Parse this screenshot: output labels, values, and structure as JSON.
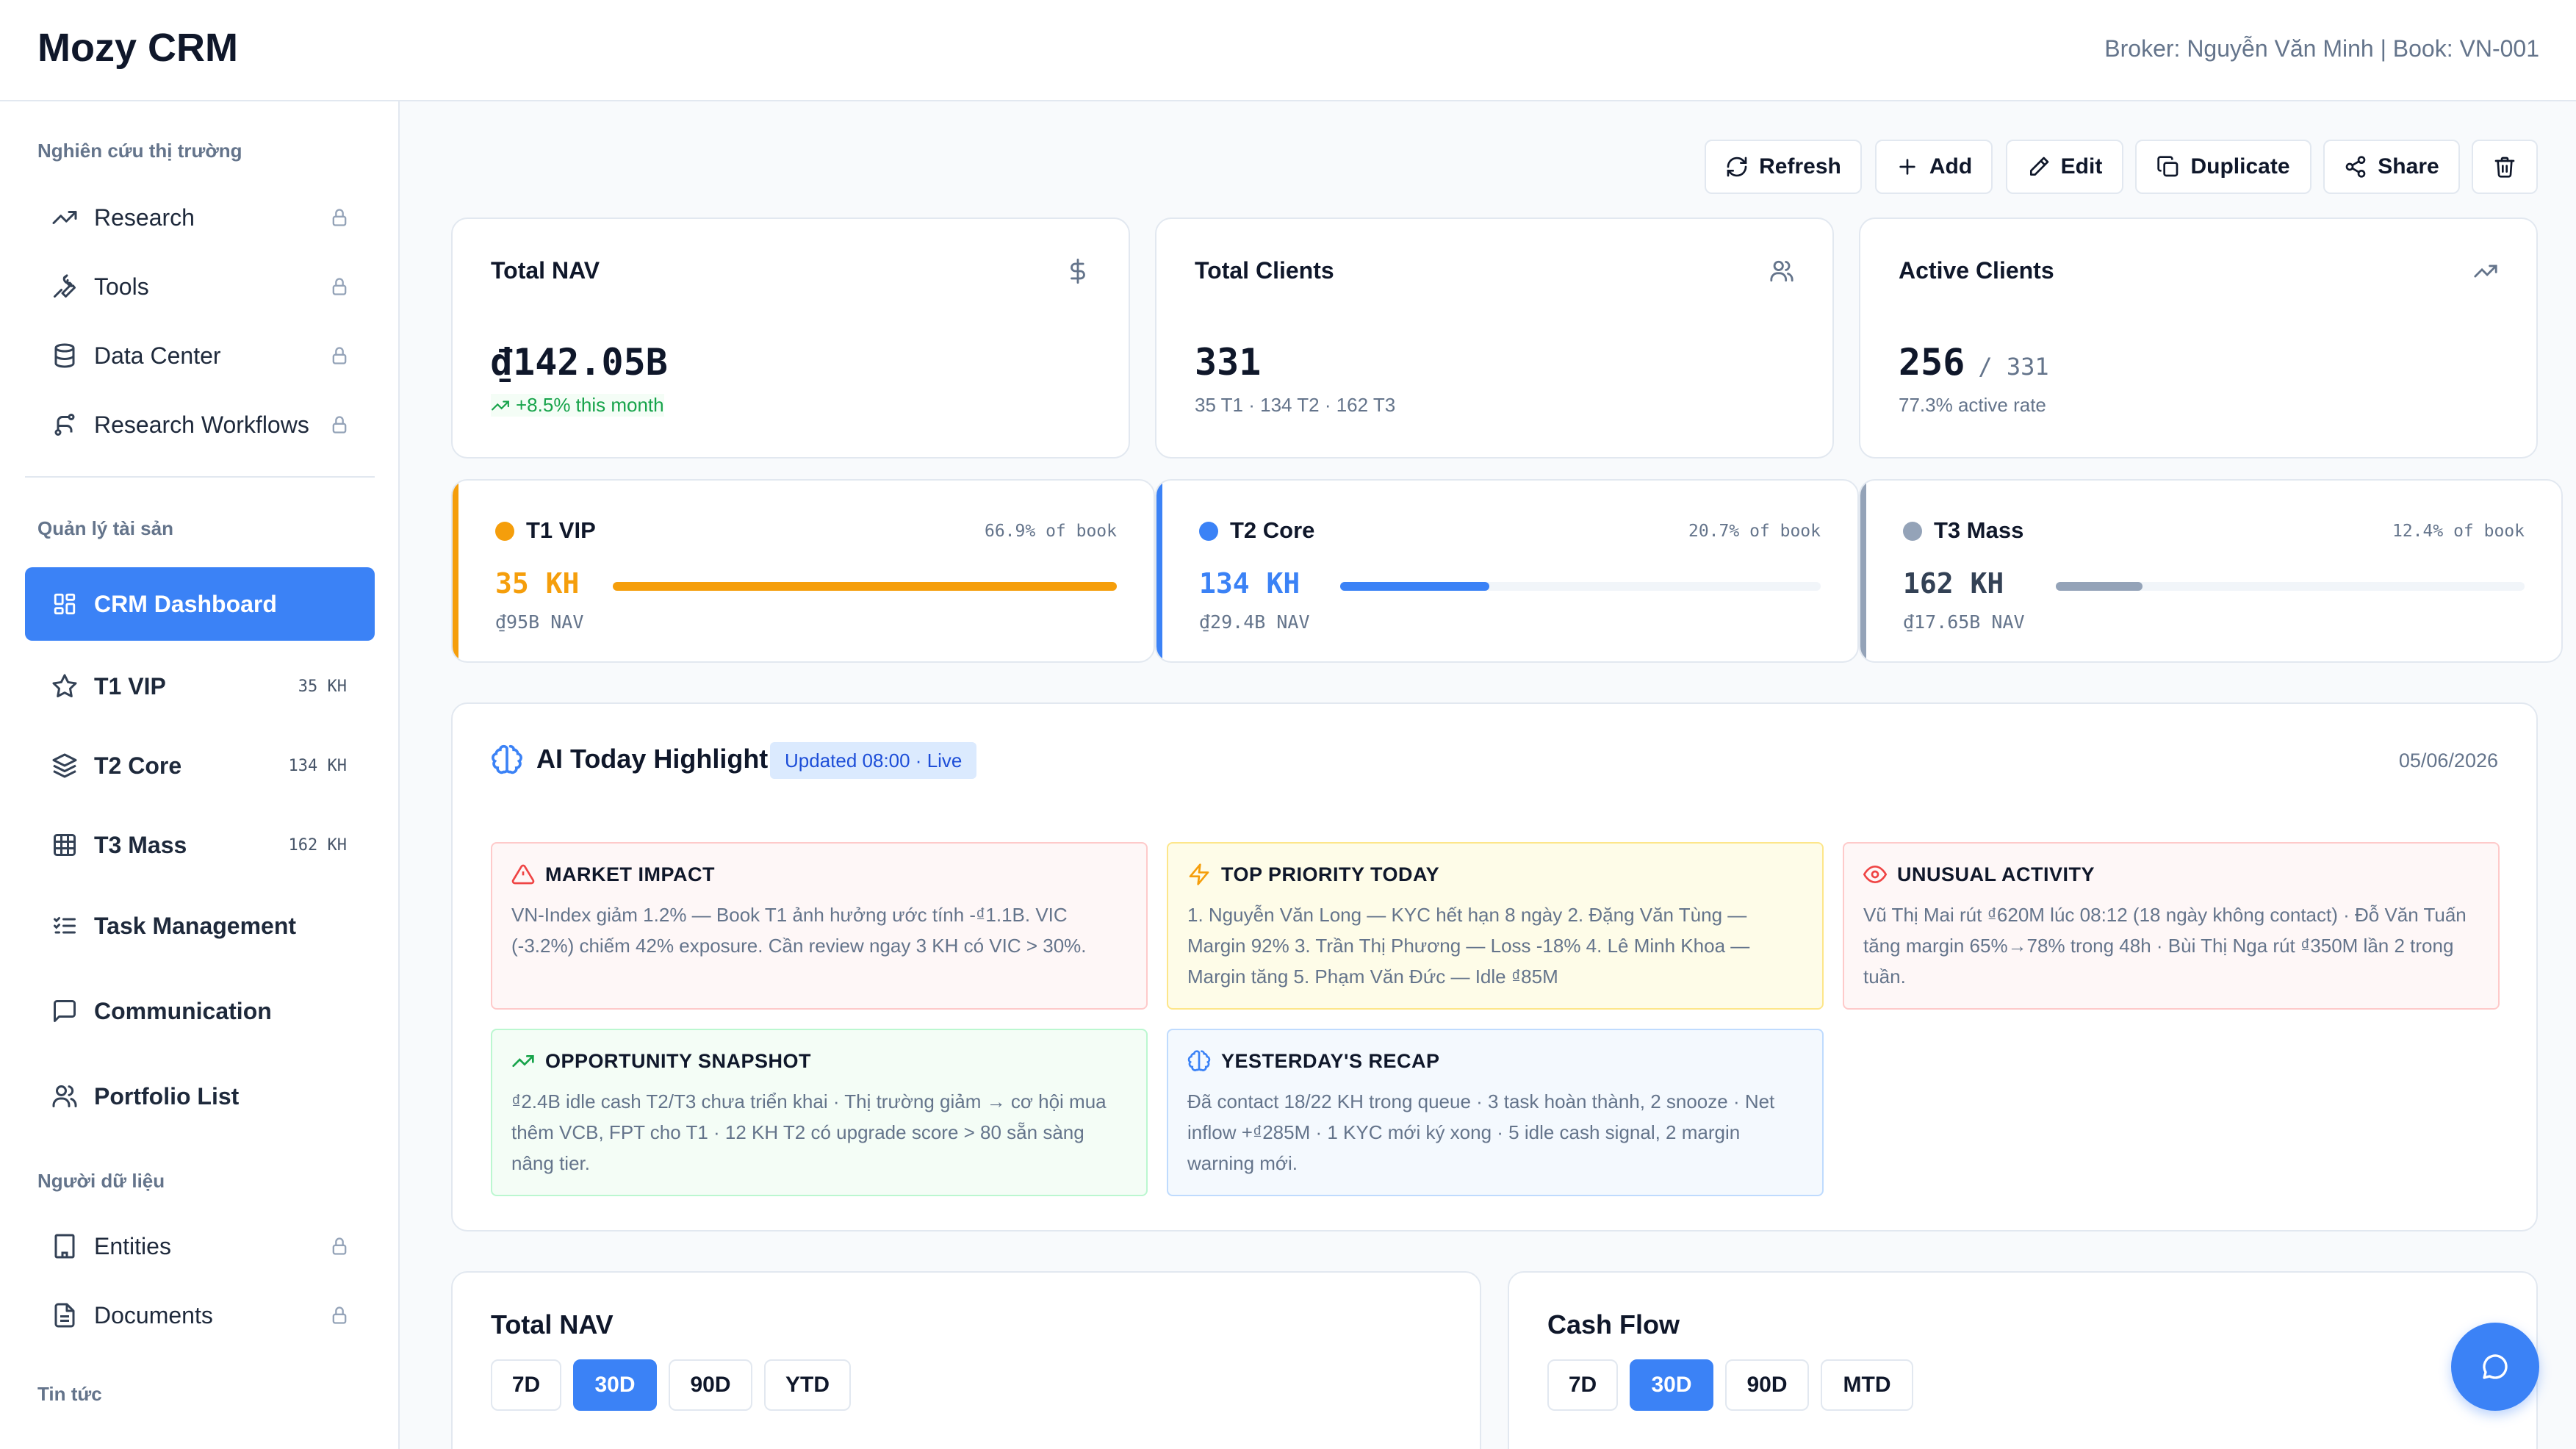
{
  "app": {
    "title": "Mozy CRM",
    "broker_info": "Broker: Nguyễn Văn Minh | Book: VN-001"
  },
  "sidebar": {
    "sections": [
      "Nghiên cứu thị trường",
      "Quản lý tài sản",
      "Người dữ liệu",
      "Tin tức"
    ],
    "research_items": [
      {
        "label": "Research",
        "icon": "trending-up-icon",
        "locked": true
      },
      {
        "label": "Tools",
        "icon": "wrench-icon",
        "locked": true
      },
      {
        "label": "Data Center",
        "icon": "database-icon",
        "locked": true
      },
      {
        "label": "Research Workflows",
        "icon": "workflow-icon",
        "locked": true
      }
    ],
    "asset_items": [
      {
        "label": "CRM Dashboard",
        "icon": "dashboard-grid-icon",
        "active": true
      },
      {
        "label": "T1 VIP",
        "icon": "star-icon",
        "count": "35 KH"
      },
      {
        "label": "T2 Core",
        "icon": "layers-icon",
        "count": "134 KH"
      },
      {
        "label": "T3 Mass",
        "icon": "grid-icon",
        "count": "162 KH"
      },
      {
        "label": "Task Management",
        "icon": "list-check-icon"
      },
      {
        "label": "Communication",
        "icon": "message-square-icon"
      },
      {
        "label": "Portfolio List",
        "icon": "users-icon"
      }
    ],
    "data_items": [
      {
        "label": "Entities",
        "icon": "building-icon",
        "locked": true
      },
      {
        "label": "Documents",
        "icon": "document-icon",
        "locked": true
      }
    ]
  },
  "toolbar": {
    "refresh": "Refresh",
    "add": "Add",
    "edit": "Edit",
    "duplicate": "Duplicate",
    "share": "Share"
  },
  "stats": {
    "total_nav": {
      "title": "Total NAV",
      "value": "₫142.05B",
      "change": "+8.5% this month"
    },
    "total_clients": {
      "title": "Total Clients",
      "value": "331",
      "sub": "35 T1 · 134 T2 · 162 T3"
    },
    "active_clients": {
      "title": "Active Clients",
      "value": "256",
      "total": "/ 331",
      "sub": "77.3% active rate"
    }
  },
  "tiers": [
    {
      "name": "T1 VIP",
      "pct": "66.9% of book",
      "count": "35 KH",
      "nav": "₫95B NAV",
      "fill": 1.0,
      "color": "#f59e0b"
    },
    {
      "name": "T2 Core",
      "pct": "20.7% of book",
      "count": "134 KH",
      "nav": "₫29.4B NAV",
      "fill": 0.31,
      "color": "#3b82f6"
    },
    {
      "name": "T3 Mass",
      "pct": "12.4% of book",
      "count": "162 KH",
      "nav": "₫17.65B NAV",
      "fill": 0.185,
      "color": "#94a3b8"
    }
  ],
  "highlight": {
    "title": "AI Today Highlight",
    "badge": "Updated 08:00 · Live",
    "date": "05/06/2026",
    "cards": {
      "market": {
        "title": "MARKET IMPACT",
        "body": "VN-Index giảm 1.2% — Book T1 ảnh hưởng ước tính -₫1.1B. VIC (-3.2%) chiếm 42% exposure. Cần review ngay 3 KH có VIC > 30%."
      },
      "priority": {
        "title": "TOP PRIORITY TODAY",
        "body": "1. Nguyễn Văn Long — KYC hết hạn 8 ngày 2. Đặng Văn Tùng — Margin 92% 3. Trần Thị Phương — Loss -18% 4. Lê Minh Khoa — Margin tăng 5. Phạm Văn Đức — Idle ₫85M"
      },
      "unusual": {
        "title": "UNUSUAL ACTIVITY",
        "body": "Vũ Thị Mai rút ₫620M lúc 08:12 (18 ngày không contact) · Đỗ Văn Tuấn tăng margin 65%→78% trong 48h · Bùi Thị Nga rút ₫350M lần 2 trong tuần."
      },
      "opportunity": {
        "title": "OPPORTUNITY SNAPSHOT",
        "body": "₫2.4B idle cash T2/T3 chưa triển khai · Thị trường giảm → cơ hội mua thêm VCB, FPT cho T1 · 12 KH T2 có upgrade score > 80 sẵn sàng nâng tier."
      },
      "recap": {
        "title": "YESTERDAY'S RECAP",
        "body": "Đã contact 18/22 KH trong queue · 3 task hoàn thành, 2 snooze · Net inflow +₫285M · 1 KYC mới ký xong · 5 idle cash signal, 2 margin warning mới."
      }
    }
  },
  "charts": {
    "nav": {
      "title": "Total NAV",
      "ranges": [
        "7D",
        "30D",
        "90D",
        "YTD"
      ],
      "selected": "30D"
    },
    "cashflow": {
      "title": "Cash Flow",
      "ranges": [
        "7D",
        "30D",
        "90D",
        "MTD"
      ],
      "selected": "30D"
    }
  }
}
